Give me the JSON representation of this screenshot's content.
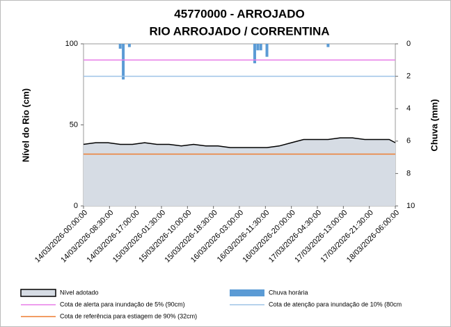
{
  "chart_data": {
    "type": "line",
    "title": "45770000 - ARROJADO",
    "subtitle": "RIO ARROJADO / CORRENTINA",
    "y_label": "Nível do Rio (cm)",
    "y2_label": "Chuva (mm)",
    "xlim": [
      "14/03/2026-00:00:00",
      "18/03/2026-06:00:00"
    ],
    "xticks": [
      "14/03/2026-00:00:00",
      "14/03/2026-08:30:00",
      "14/03/2026-17:00:00",
      "15/03/2026-01:30:00",
      "15/03/2026-10:00:00",
      "15/03/2026-18:30:00",
      "16/03/2026-03:00:00",
      "16/03/2026-11:30:00",
      "16/03/2026-20:00:00",
      "17/03/2026-04:30:00",
      "17/03/2026-13:00:00",
      "17/03/2026-21:30:00",
      "18/03/2026-06:00:00"
    ],
    "ylim": [
      0,
      100
    ],
    "yticks": [
      0,
      50,
      100
    ],
    "y2lim": [
      0,
      10
    ],
    "y2ticks": [
      0,
      2,
      4,
      6,
      8,
      10
    ],
    "y2_inverted": true,
    "series": [
      {
        "name": "Nível adotado",
        "kind": "area",
        "color": "#000000",
        "fill": "#d6dce4",
        "x": [
          "14/03/2026-00:00:00",
          "14/03/2026-04:00:00",
          "14/03/2026-08:00:00",
          "14/03/2026-12:00:00",
          "14/03/2026-16:00:00",
          "14/03/2026-20:00:00",
          "15/03/2026-00:00:00",
          "15/03/2026-04:00:00",
          "15/03/2026-08:00:00",
          "15/03/2026-12:00:00",
          "15/03/2026-16:00:00",
          "15/03/2026-20:00:00",
          "16/03/2026-00:00:00",
          "16/03/2026-04:00:00",
          "16/03/2026-08:00:00",
          "16/03/2026-12:00:00",
          "16/03/2026-16:00:00",
          "16/03/2026-20:00:00",
          "17/03/2026-00:00:00",
          "17/03/2026-04:00:00",
          "17/03/2026-08:00:00",
          "17/03/2026-12:00:00",
          "17/03/2026-16:00:00",
          "17/03/2026-20:00:00",
          "18/03/2026-00:00:00",
          "18/03/2026-04:00:00",
          "18/03/2026-06:00:00"
        ],
        "values": [
          38,
          39,
          39,
          38,
          38,
          39,
          38,
          38,
          37,
          38,
          37,
          37,
          36,
          36,
          36,
          36,
          37,
          39,
          41,
          41,
          41,
          42,
          42,
          41,
          41,
          41,
          39
        ]
      },
      {
        "name": "Chuva horária",
        "kind": "bar",
        "axis": "y2",
        "color": "#5b9bd5",
        "x": [
          "14/03/2026-12:00:00",
          "14/03/2026-13:00:00",
          "14/03/2026-15:00:00",
          "16/03/2026-08:00:00",
          "16/03/2026-09:00:00",
          "16/03/2026-10:00:00",
          "16/03/2026-12:00:00",
          "17/03/2026-08:00:00"
        ],
        "values": [
          0.3,
          2.2,
          0.2,
          1.2,
          0.4,
          0.4,
          0.8,
          0.2
        ]
      }
    ],
    "reference_lines": [
      {
        "name": "Cota de alerta para inundação de 5% (90cm)",
        "value": 90,
        "color": "#e87de8"
      },
      {
        "name": "Cota de atenção para inundação de 10% (80cm",
        "value": 80,
        "color": "#9dc3e6"
      },
      {
        "name": "Cota de referência para estiagem de 90% (32cm)",
        "value": 32,
        "color": "#ed7d31"
      }
    ]
  }
}
